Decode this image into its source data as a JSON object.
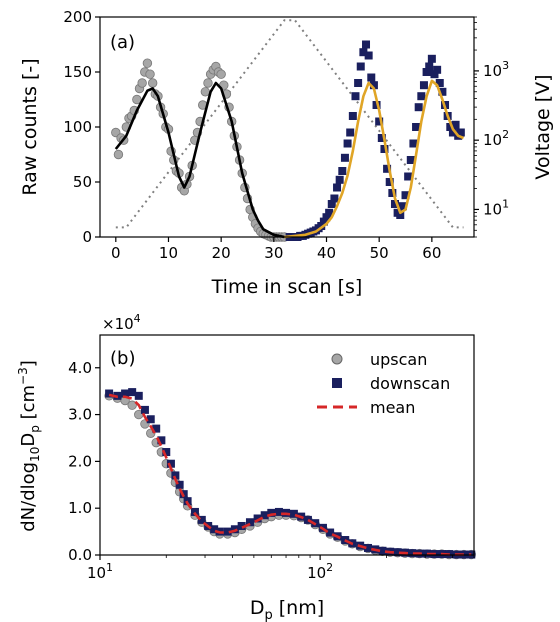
{
  "chart_data": [
    {
      "panel": "(a)",
      "type": "scatter",
      "xlabel": "Time in scan [s]",
      "ylabel": "Raw counts [-]",
      "ylabel_right": "Voltage [V]",
      "xlim": [
        -3,
        68
      ],
      "ylim": [
        0,
        200
      ],
      "xticks": [
        0,
        10,
        20,
        30,
        40,
        50,
        60
      ],
      "yticks": [
        0,
        50,
        100,
        150,
        200
      ],
      "y2_scale": "log",
      "y2lim": [
        4,
        6000
      ],
      "y2ticks": [
        {
          "value": 10,
          "label": "10",
          "exp": "1"
        },
        {
          "value": 100,
          "label": "10",
          "exp": "2"
        },
        {
          "value": 1000,
          "label": "10",
          "exp": "3"
        }
      ],
      "colors": {
        "upscan": "#a6a6a6",
        "downscan": "#1a1f5e",
        "fit_up": "#000000",
        "fit_down": "#e0a526",
        "voltage": "#808080"
      },
      "series": [
        {
          "name": "upscan",
          "marker": "circle",
          "x": [
            0.0,
            0.5,
            1.0,
            1.5,
            2.0,
            2.5,
            3.0,
            3.5,
            4.0,
            4.5,
            5.0,
            5.5,
            6.0,
            6.5,
            7.0,
            7.5,
            8.0,
            8.5,
            9.0,
            9.5,
            10.0,
            10.5,
            11.0,
            11.5,
            12.0,
            12.5,
            13.0,
            13.5,
            14.0,
            14.5,
            15.0,
            15.5,
            16.0,
            16.5,
            17.0,
            17.5,
            18.0,
            18.5,
            19.0,
            19.5,
            20.0,
            20.5,
            21.0,
            21.5,
            22.0,
            22.5,
            23.0,
            23.5,
            24.0,
            24.5,
            25.0,
            25.5,
            26.0,
            26.5,
            27.0,
            27.5,
            28.0,
            28.5,
            29.0,
            29.5,
            30.0,
            30.5,
            31.0,
            31.5,
            32.0
          ],
          "y": [
            95,
            75,
            90,
            88,
            100,
            108,
            110,
            115,
            125,
            135,
            140,
            150,
            158,
            148,
            140,
            130,
            128,
            118,
            112,
            100,
            98,
            78,
            70,
            60,
            58,
            45,
            42,
            48,
            55,
            65,
            88,
            95,
            105,
            120,
            132,
            140,
            148,
            152,
            155,
            150,
            148,
            138,
            130,
            118,
            105,
            92,
            82,
            70,
            58,
            45,
            35,
            25,
            18,
            12,
            8,
            5,
            3,
            2,
            1,
            0,
            0,
            0,
            0,
            0,
            0
          ]
        },
        {
          "name": "downscan",
          "marker": "square",
          "x": [
            33.0,
            33.5,
            34.0,
            34.5,
            35.0,
            35.5,
            36.0,
            36.5,
            37.0,
            37.5,
            38.0,
            38.5,
            39.0,
            39.5,
            40.0,
            40.5,
            41.0,
            41.5,
            42.0,
            42.5,
            43.0,
            43.5,
            44.0,
            44.5,
            45.0,
            45.5,
            46.0,
            46.5,
            47.0,
            47.5,
            48.0,
            48.5,
            49.0,
            49.5,
            50.0,
            50.5,
            51.0,
            51.5,
            52.0,
            52.5,
            53.0,
            53.5,
            54.0,
            54.5,
            55.0,
            55.5,
            56.0,
            56.5,
            57.0,
            57.5,
            58.0,
            58.5,
            59.0,
            59.5,
            60.0,
            60.5,
            61.0,
            61.5,
            62.0,
            62.5,
            63.0,
            63.5,
            64.0,
            64.5,
            65.0,
            65.5
          ],
          "y": [
            0,
            0,
            0,
            0,
            1,
            1,
            2,
            3,
            4,
            5,
            6,
            8,
            10,
            14,
            18,
            22,
            30,
            35,
            45,
            52,
            60,
            72,
            85,
            95,
            110,
            128,
            140,
            155,
            168,
            175,
            165,
            145,
            138,
            120,
            105,
            90,
            80,
            62,
            50,
            40,
            30,
            22,
            20,
            28,
            38,
            55,
            70,
            85,
            100,
            118,
            128,
            138,
            150,
            155,
            162,
            148,
            152,
            140,
            132,
            120,
            110,
            100,
            95,
            102,
            92,
            95
          ]
        },
        {
          "name": "fit upscan",
          "marker": "line",
          "x": [
            0,
            2,
            4,
            6,
            7,
            8,
            10,
            12,
            13,
            14,
            16,
            18,
            19,
            20,
            22,
            24,
            26,
            27,
            28,
            30,
            32
          ],
          "y": [
            80,
            92,
            115,
            133,
            135,
            128,
            95,
            55,
            45,
            55,
            95,
            132,
            140,
            135,
            105,
            58,
            25,
            15,
            7,
            2,
            0
          ]
        },
        {
          "name": "fit downscan",
          "marker": "line",
          "x": [
            32,
            34,
            36,
            38,
            40,
            41,
            42,
            43,
            44,
            45,
            46,
            47,
            48,
            49,
            50,
            51,
            52,
            53,
            54,
            55,
            56,
            57,
            58,
            59,
            60,
            61,
            62,
            63,
            64,
            65,
            66
          ],
          "y": [
            0,
            1,
            2,
            5,
            12,
            18,
            28,
            40,
            56,
            78,
            105,
            128,
            140,
            135,
            115,
            88,
            60,
            35,
            22,
            25,
            45,
            75,
            105,
            128,
            142,
            138,
            125,
            110,
            98,
            92,
            90
          ]
        },
        {
          "name": "voltage",
          "marker": "dotted-line",
          "axis": "right",
          "x": [
            0,
            2,
            32,
            34,
            64,
            66
          ],
          "y": [
            5.5,
            5.5,
            5400,
            5400,
            5.5,
            5.5
          ]
        }
      ]
    },
    {
      "panel": "(b)",
      "type": "scatter",
      "xlabel": "D",
      "xlabel_sub": "p",
      "xlabel_suffix": " [nm]",
      "ylabel": "dN/dlog",
      "ylabel_sub1": "10",
      "ylabel_mid": "D",
      "ylabel_sub2": "p",
      "ylabel_suffix": " [cm",
      "ylabel_sup": "−3",
      "ylabel_end": "]",
      "multiplier_base": "×10",
      "multiplier_exp": "4",
      "x_scale": "log",
      "xlim": [
        10,
        500
      ],
      "ylim": [
        0,
        4.7
      ],
      "xticks": [
        {
          "value": 10,
          "label": "10",
          "exp": "1"
        },
        {
          "value": 100,
          "label": "10",
          "exp": "2"
        }
      ],
      "yticks": [
        {
          "value": 0,
          "label": "0.0"
        },
        {
          "value": 1,
          "label": "1.0"
        },
        {
          "value": 2,
          "label": "2.0"
        },
        {
          "value": 3,
          "label": "3.0"
        },
        {
          "value": 4,
          "label": "4.0"
        }
      ],
      "legend_position": "top-right",
      "colors": {
        "upscan": "#a6a6a6",
        "downscan": "#1a1f5e",
        "mean": "#d62728"
      },
      "series": [
        {
          "name": "upscan",
          "marker": "circle",
          "x": [
            11,
            12,
            13,
            14,
            15,
            16,
            17,
            18,
            19,
            20,
            21,
            22,
            23,
            24,
            25,
            27,
            29,
            31,
            33,
            35,
            38,
            41,
            44,
            48,
            52,
            56,
            60,
            65,
            70,
            76,
            82,
            88,
            95,
            103,
            111,
            120,
            130,
            140,
            152,
            165,
            178,
            192,
            208,
            225,
            243,
            262,
            283,
            306,
            330,
            357,
            385,
            416,
            450,
            486
          ],
          "y": [
            3.4,
            3.35,
            3.3,
            3.2,
            3.0,
            2.8,
            2.6,
            2.4,
            2.2,
            1.95,
            1.75,
            1.55,
            1.35,
            1.2,
            1.05,
            0.85,
            0.7,
            0.6,
            0.5,
            0.45,
            0.45,
            0.48,
            0.55,
            0.62,
            0.7,
            0.78,
            0.82,
            0.85,
            0.85,
            0.84,
            0.8,
            0.75,
            0.65,
            0.55,
            0.45,
            0.38,
            0.3,
            0.24,
            0.18,
            0.14,
            0.1,
            0.08,
            0.06,
            0.05,
            0.04,
            0.03,
            0.03,
            0.02,
            0.02,
            0.02,
            0.01,
            0.01,
            0.01,
            0.01
          ]
        },
        {
          "name": "downscan",
          "marker": "square",
          "x": [
            11,
            12,
            13,
            14,
            15,
            16,
            17,
            18,
            19,
            20,
            21,
            22,
            23,
            24,
            25,
            27,
            29,
            31,
            33,
            35,
            38,
            41,
            44,
            48,
            52,
            56,
            60,
            65,
            70,
            76,
            82,
            88,
            95,
            103,
            111,
            120,
            130,
            140,
            152,
            165,
            178,
            192,
            208,
            225,
            243,
            262,
            283,
            306,
            330,
            357,
            385,
            416,
            450,
            486
          ],
          "y": [
            3.45,
            3.4,
            3.45,
            3.48,
            3.4,
            3.1,
            2.9,
            2.7,
            2.45,
            2.2,
            1.95,
            1.7,
            1.5,
            1.3,
            1.15,
            0.92,
            0.75,
            0.62,
            0.55,
            0.5,
            0.5,
            0.55,
            0.62,
            0.7,
            0.78,
            0.85,
            0.9,
            0.92,
            0.9,
            0.88,
            0.82,
            0.75,
            0.68,
            0.58,
            0.48,
            0.4,
            0.32,
            0.25,
            0.2,
            0.15,
            0.12,
            0.09,
            0.07,
            0.06,
            0.05,
            0.04,
            0.03,
            0.03,
            0.02,
            0.02,
            0.02,
            0.01,
            0.01,
            0.01
          ]
        },
        {
          "name": "mean",
          "marker": "dashed-line",
          "x": [
            11,
            12,
            13,
            14,
            15,
            16,
            17,
            18,
            19,
            20,
            21,
            22,
            23,
            24,
            25,
            27,
            29,
            31,
            33,
            35,
            38,
            41,
            44,
            48,
            52,
            56,
            60,
            65,
            70,
            76,
            82,
            88,
            95,
            103,
            111,
            120,
            130,
            140,
            152,
            165,
            178,
            192,
            208,
            225,
            243,
            262,
            283,
            306,
            330,
            357,
            385,
            416,
            450,
            486
          ],
          "y": [
            3.42,
            3.38,
            3.38,
            3.34,
            3.2,
            2.95,
            2.75,
            2.55,
            2.32,
            2.08,
            1.85,
            1.62,
            1.42,
            1.25,
            1.1,
            0.88,
            0.72,
            0.61,
            0.52,
            0.48,
            0.48,
            0.52,
            0.58,
            0.66,
            0.74,
            0.82,
            0.86,
            0.88,
            0.88,
            0.86,
            0.81,
            0.75,
            0.66,
            0.56,
            0.46,
            0.39,
            0.31,
            0.24,
            0.19,
            0.14,
            0.11,
            0.08,
            0.06,
            0.05,
            0.04,
            0.03,
            0.03,
            0.02,
            0.02,
            0.02,
            0.01,
            0.01,
            0.01,
            0.01
          ]
        }
      ]
    }
  ]
}
